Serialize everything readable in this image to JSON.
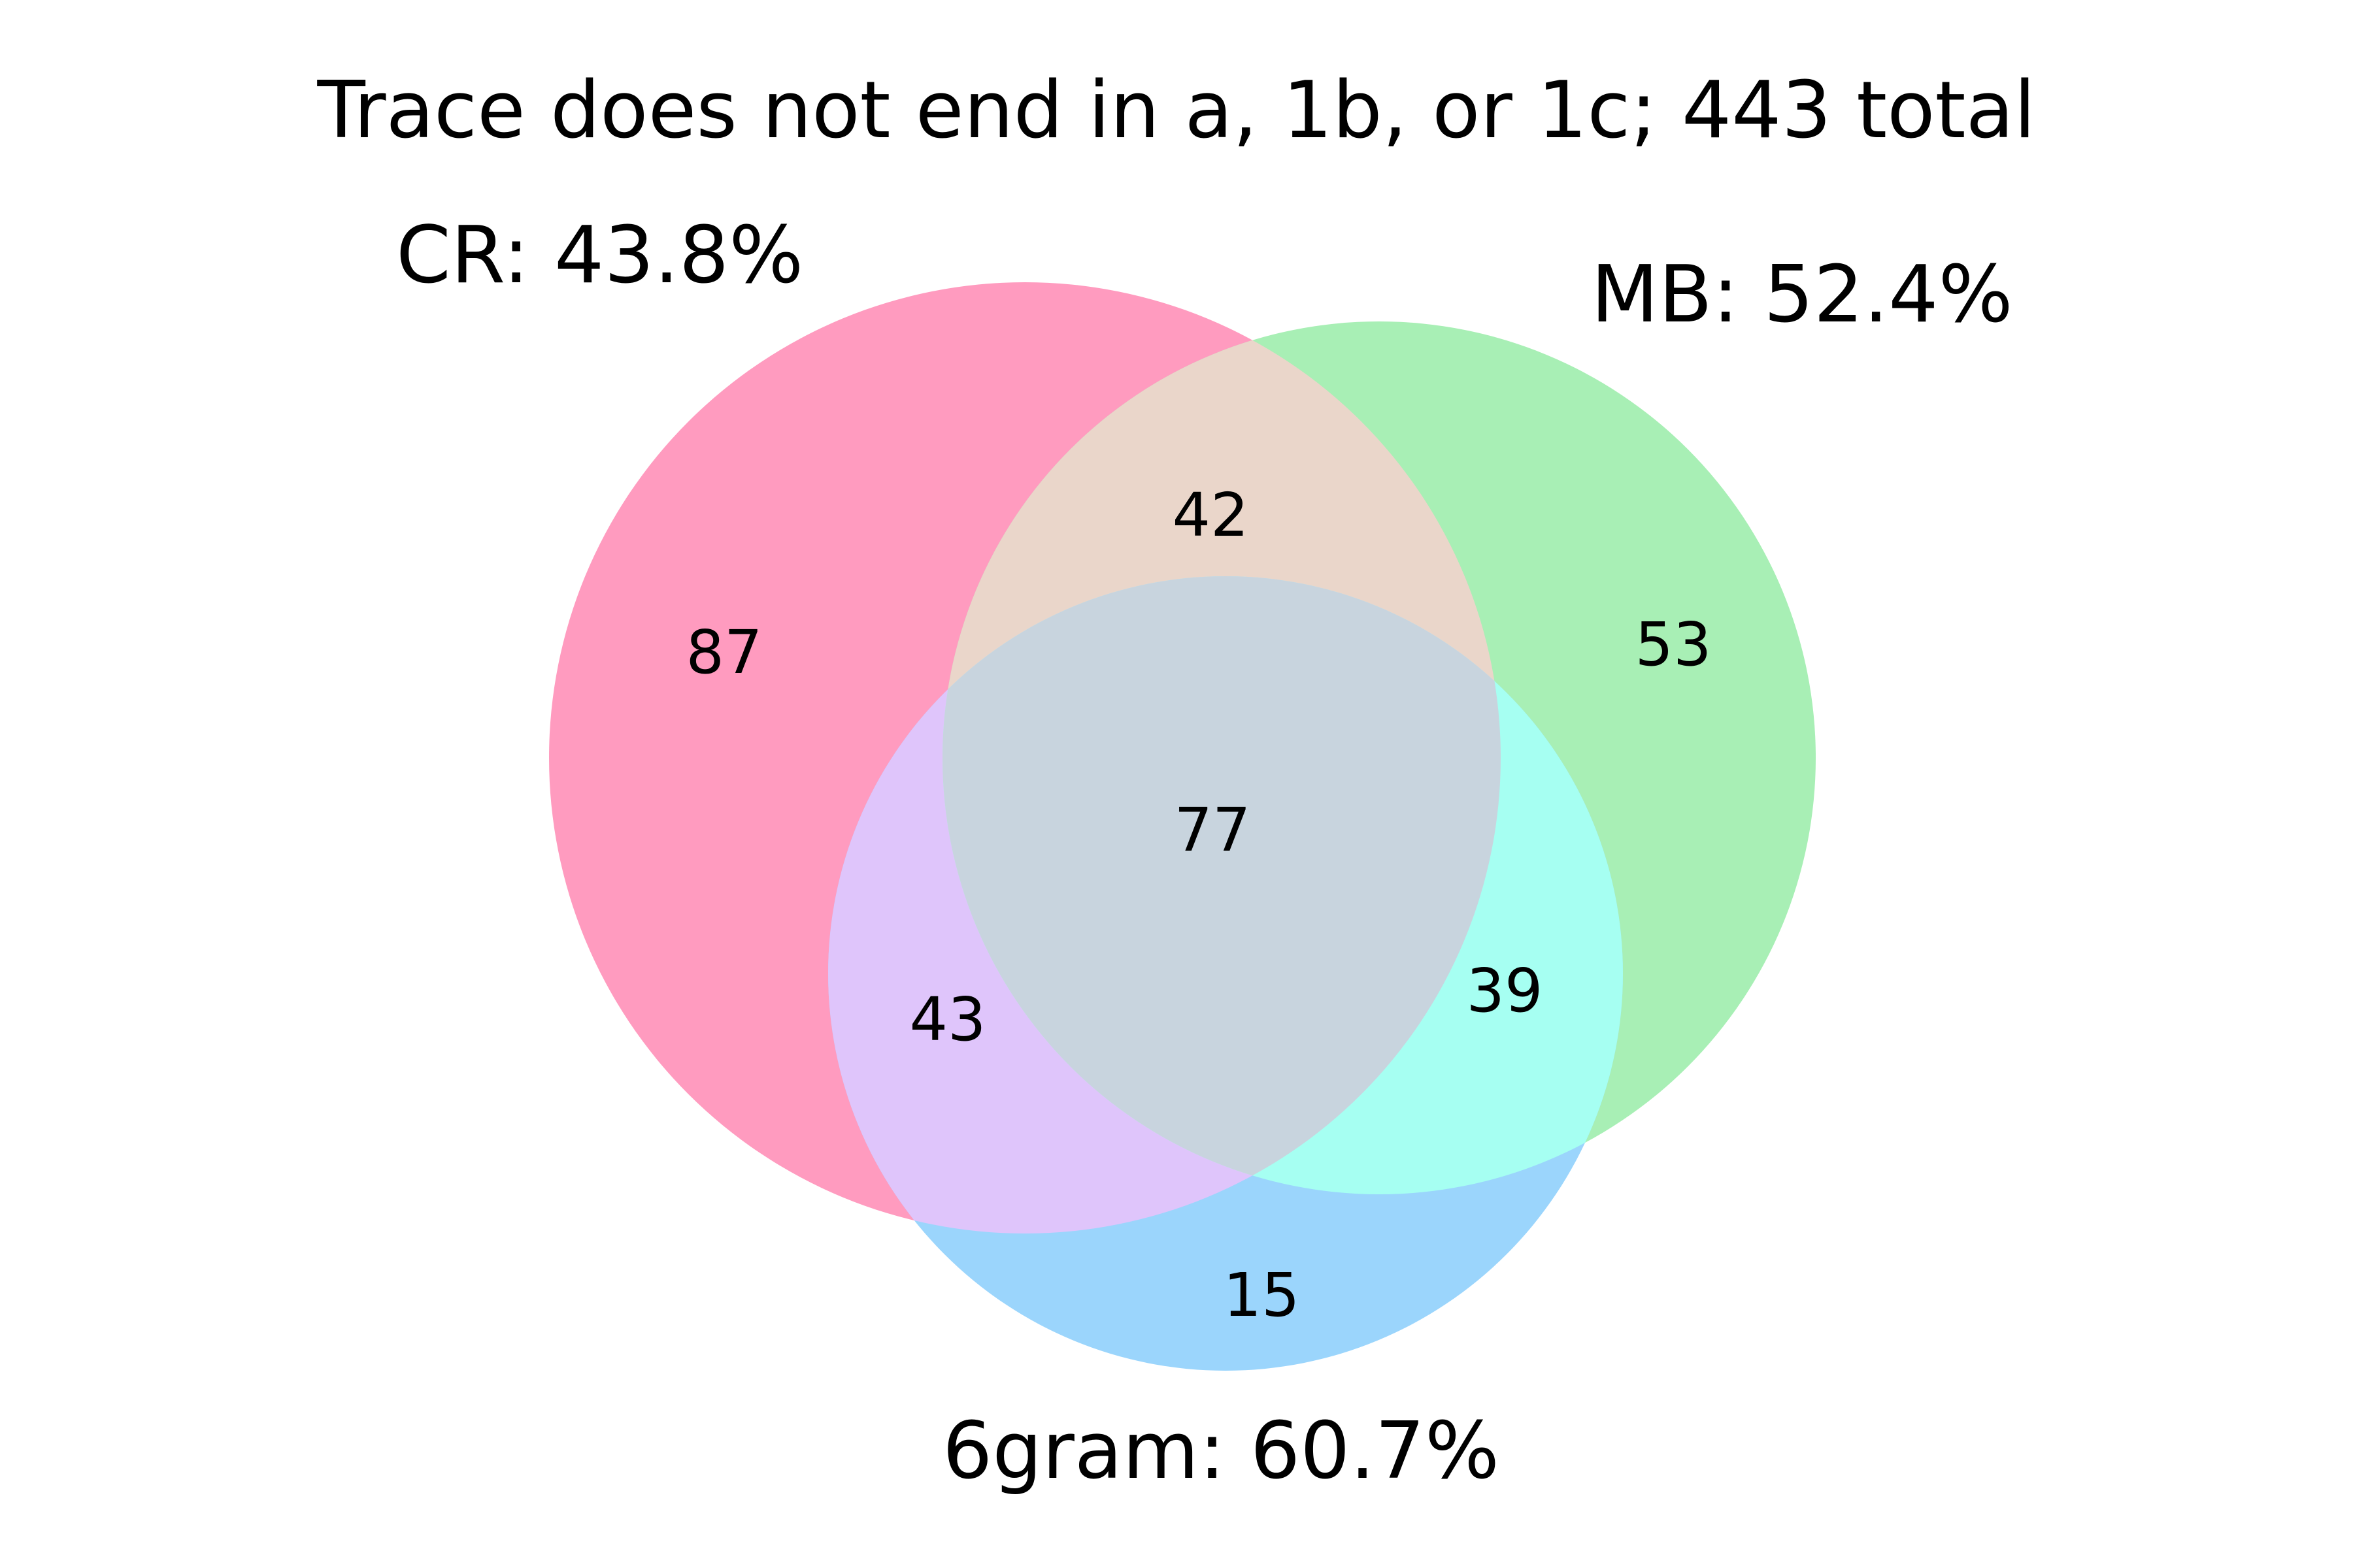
{
  "title": "Trace does not end in a, 1b, or 1c; 443 total",
  "sets": {
    "cr": {
      "label": "CR: 43.8%",
      "color": "#ff6fa0"
    },
    "mb": {
      "label": "MB: 52.4%",
      "color": "#80e59a"
    },
    "sixgram": {
      "label": "6gram: 60.7%",
      "color": "#66c2ff"
    }
  },
  "regions": {
    "cr_only": "87",
    "mb_only": "53",
    "sixgram_only": "15",
    "cr_mb": "42",
    "cr_sixgram": "43",
    "mb_sixgram": "39",
    "all_three": "77"
  },
  "blend_colors": {
    "cr_mb": "#ead6ca",
    "cr_sixgram": "#dfc5fb",
    "mb_sixgram": "#a6fff2",
    "all_three": "#c8d4de"
  }
}
